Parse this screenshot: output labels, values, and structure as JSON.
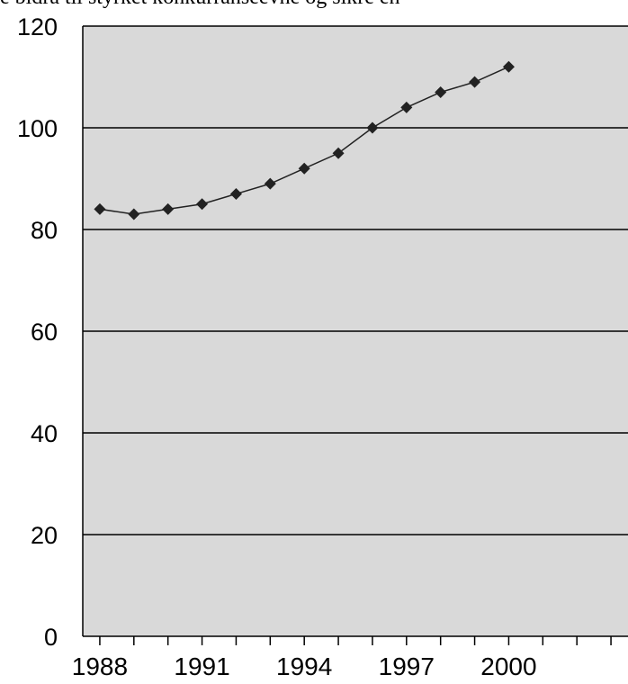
{
  "caption_fragment": "e bidra til styrket konkurranseevne og sikre en",
  "chart_data": {
    "type": "line",
    "x": [
      1988,
      1989,
      1990,
      1991,
      1992,
      1993,
      1994,
      1995,
      1996,
      1997,
      1998,
      1999,
      2000
    ],
    "series": [
      {
        "values": [
          84,
          83,
          84,
          85,
          87,
          89,
          92,
          95,
          100,
          104,
          107,
          109,
          112
        ]
      }
    ],
    "xticks": [
      "1988",
      "1991",
      "1994",
      "1997",
      "2000"
    ],
    "yticks": [
      "0",
      "20",
      "40",
      "60",
      "80",
      "100",
      "120"
    ],
    "xlim": [
      1987.5,
      2003.5
    ],
    "ylim": [
      0,
      120
    ],
    "grid": "horizontal",
    "background": "#d9d9d9",
    "line_color": "#222222",
    "marker": "diamond",
    "title": "",
    "xlabel": "",
    "ylabel": ""
  }
}
